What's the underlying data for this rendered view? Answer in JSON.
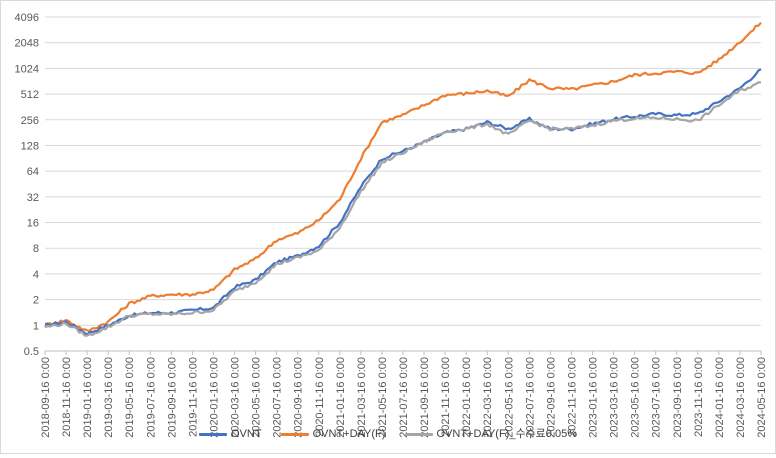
{
  "chart_data": {
    "type": "line",
    "title": "",
    "xlabel": "",
    "ylabel": "",
    "y_scale": "log2",
    "ylim": [
      0.5,
      4096
    ],
    "y_ticks": [
      "0.5",
      "1",
      "2",
      "4",
      "8",
      "16",
      "32",
      "64",
      "128",
      "256",
      "512",
      "1024",
      "2048",
      "4096"
    ],
    "x_ticks": [
      "2018-09-16 0:00",
      "2018-11-16 0:00",
      "2019-01-16 0:00",
      "2019-03-16 0:00",
      "2019-05-16 0:00",
      "2019-07-16 0:00",
      "2019-09-16 0:00",
      "2019-11-16 0:00",
      "2020-01-16 0:00",
      "2020-03-16 0:00",
      "2020-05-16 0:00",
      "2020-07-16 0:00",
      "2020-09-16 0:00",
      "2020-11-16 0:00",
      "2021-01-16 0:00",
      "2021-03-16 0:00",
      "2021-05-16 0:00",
      "2021-07-16 0:00",
      "2021-09-16 0:00",
      "2021-11-16 0:00",
      "2022-01-16 0:00",
      "2022-03-16 0:00",
      "2022-05-16 0:00",
      "2022-07-16 0:00",
      "2022-09-16 0:00",
      "2022-11-16 0:00",
      "2023-01-16 0:00",
      "2023-03-16 0:00",
      "2023-05-16 0:00",
      "2023-07-16 0:00",
      "2023-09-16 0:00",
      "2023-11-16 0:00",
      "2024-01-16 0:00",
      "2024-03-16 0:00",
      "2024-05-16 0:00"
    ],
    "grid": true,
    "legend_position": "bottom",
    "x": [
      "2018-09-16",
      "2018-11-16",
      "2019-01-16",
      "2019-03-16",
      "2019-05-16",
      "2019-07-16",
      "2019-09-16",
      "2019-11-16",
      "2020-01-16",
      "2020-03-16",
      "2020-05-16",
      "2020-07-16",
      "2020-09-16",
      "2020-11-16",
      "2021-01-16",
      "2021-03-16",
      "2021-05-16",
      "2021-07-16",
      "2021-09-16",
      "2021-11-16",
      "2022-01-16",
      "2022-03-16",
      "2022-05-16",
      "2022-07-16",
      "2022-09-16",
      "2022-11-16",
      "2023-01-16",
      "2023-03-16",
      "2023-05-16",
      "2023-07-16",
      "2023-09-16",
      "2023-11-16",
      "2024-01-16",
      "2024-03-16",
      "2024-05-16"
    ],
    "series": [
      {
        "name": "OVNT",
        "color": "#4472C4",
        "values": [
          1.0,
          1.1,
          0.8,
          1.0,
          1.3,
          1.4,
          1.4,
          1.5,
          1.6,
          2.8,
          3.4,
          5.5,
          6.5,
          8.5,
          16,
          42,
          90,
          110,
          140,
          180,
          200,
          240,
          200,
          260,
          200,
          200,
          230,
          260,
          280,
          300,
          290,
          300,
          420,
          600,
          1000
        ]
      },
      {
        "name": "OVNT+DAY(F)",
        "color": "#ED7D31",
        "values": [
          1.0,
          1.15,
          0.85,
          1.1,
          1.8,
          2.2,
          2.3,
          2.3,
          2.6,
          4.5,
          6.0,
          10,
          12,
          17,
          30,
          90,
          240,
          290,
          380,
          500,
          520,
          560,
          480,
          750,
          600,
          580,
          650,
          720,
          860,
          900,
          940,
          900,
          1300,
          2100,
          3500
        ]
      },
      {
        "name": "OVNT+DAY(F)_수수료0.05%",
        "color": "#A5A5A5",
        "values": [
          0.95,
          1.05,
          0.75,
          0.95,
          1.3,
          1.35,
          1.35,
          1.4,
          1.5,
          2.5,
          3.2,
          5.2,
          6.2,
          7.5,
          14,
          37,
          80,
          105,
          140,
          185,
          200,
          230,
          170,
          250,
          200,
          200,
          220,
          250,
          265,
          270,
          260,
          250,
          380,
          560,
          700
        ]
      }
    ]
  }
}
